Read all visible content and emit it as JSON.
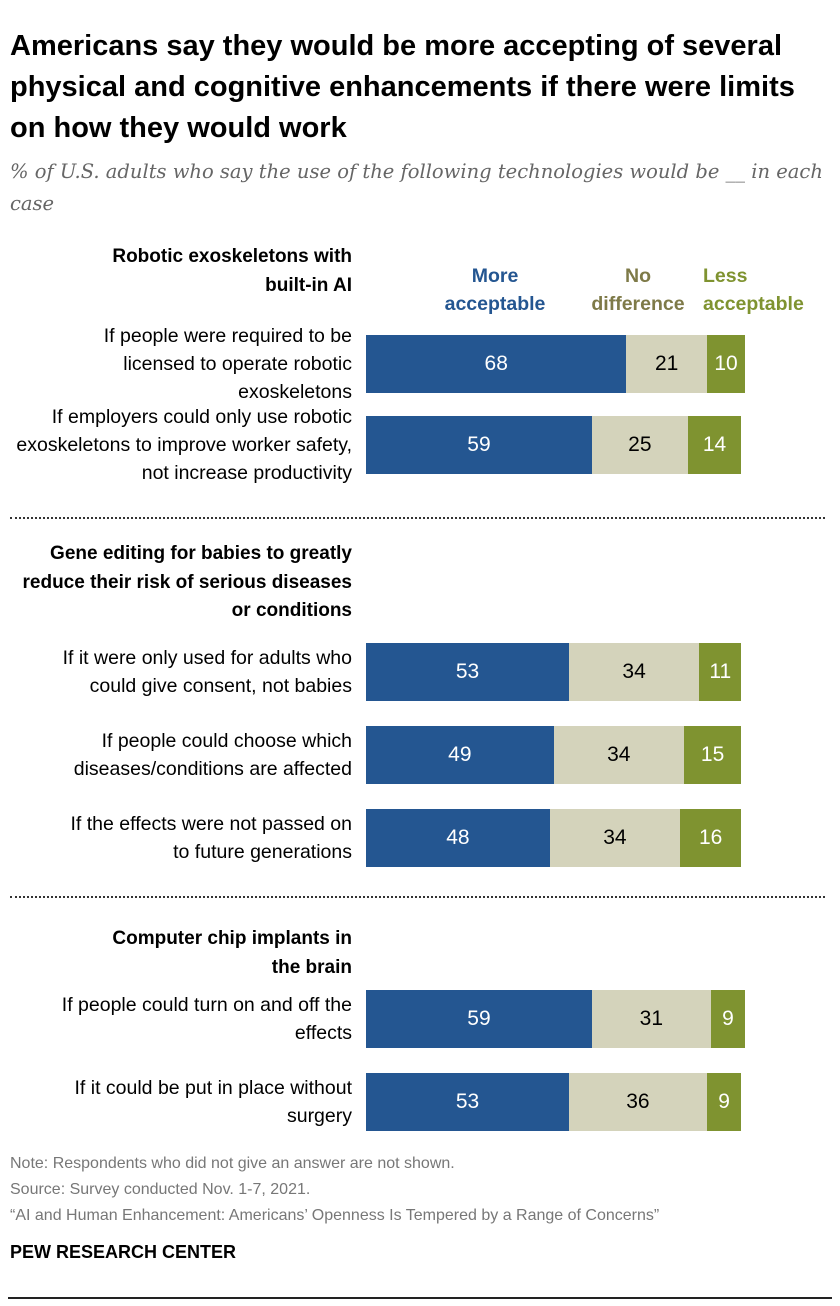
{
  "title": "Americans say they would be more accepting of several physical and cognitive enhancements if there were limits on how they would work",
  "subtitle": "% of U.S. adults who say the use of the following technologies would be __ in each case",
  "colors": {
    "more": "#245691",
    "no_difference": "#d4d3bb",
    "less": "#7f9330",
    "legend_no_difference": "#7e7a48"
  },
  "legend": {
    "more": "More acceptable",
    "no_difference": "No difference",
    "less": "Less acceptable"
  },
  "chart_data": {
    "type": "bar",
    "orientation": "horizontal-stacked",
    "series_names": [
      "More acceptable",
      "No difference",
      "Less acceptable"
    ],
    "groups": [
      {
        "header": "Robotic exoskeletons with built-in AI",
        "rows": [
          {
            "label": "If people were required to be licensed to operate robotic exoskeletons",
            "values": [
              68,
              21,
              10
            ]
          },
          {
            "label": "If employers could only use robotic exoskeletons to improve worker safety, not increase productivity",
            "values": [
              59,
              25,
              14
            ]
          }
        ]
      },
      {
        "header": "Gene editing for babies to greatly reduce their risk of serious diseases or conditions",
        "rows": [
          {
            "label": "If it were only used for adults who could give consent, not babies",
            "values": [
              53,
              34,
              11
            ]
          },
          {
            "label": "If people could choose which diseases/conditions are affected",
            "values": [
              49,
              34,
              15
            ]
          },
          {
            "label": "If the effects were not passed on to future generations",
            "values": [
              48,
              34,
              16
            ]
          }
        ]
      },
      {
        "header": "Computer chip implants in the brain",
        "rows": [
          {
            "label": "If people could turn on and off the effects",
            "values": [
              59,
              31,
              9
            ]
          },
          {
            "label": "If it could be put in place without surgery",
            "values": [
              53,
              36,
              9
            ]
          }
        ]
      }
    ]
  },
  "footer": {
    "note": "Note: Respondents who did not give an answer are not shown.",
    "source": "Source: Survey conducted Nov. 1-7, 2021.",
    "report": "“AI and Human Enhancement: Americans’ Openness Is Tempered by a Range of Concerns”",
    "brand": "PEW RESEARCH CENTER"
  }
}
